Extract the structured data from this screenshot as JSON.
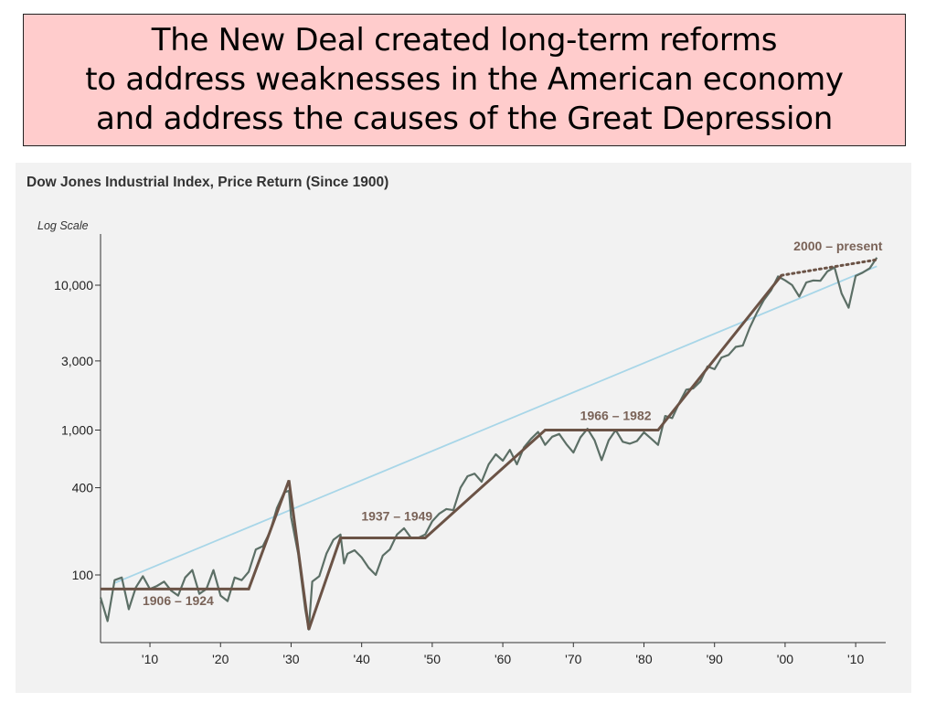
{
  "slide": {
    "title_lines": [
      "The New Deal created long-term reforms",
      "to address weaknesses in the American economy",
      "and address the causes of the Great Depression"
    ]
  },
  "chart_data": {
    "type": "line",
    "title": "Dow Jones Industrial Index, Price Return (Since 1900)",
    "scale_note": "Log Scale",
    "y_scale": "log",
    "xlim": [
      1903,
      2014
    ],
    "ylim": [
      40,
      25000
    ],
    "x_ticks": [
      {
        "value": 1910,
        "label": "'10"
      },
      {
        "value": 1920,
        "label": "'20"
      },
      {
        "value": 1930,
        "label": "'30"
      },
      {
        "value": 1940,
        "label": "'40"
      },
      {
        "value": 1950,
        "label": "'50"
      },
      {
        "value": 1960,
        "label": "'60"
      },
      {
        "value": 1970,
        "label": "'70"
      },
      {
        "value": 1980,
        "label": "'80"
      },
      {
        "value": 1990,
        "label": "'90"
      },
      {
        "value": 2000,
        "label": "'00"
      },
      {
        "value": 2010,
        "label": "'10"
      }
    ],
    "y_ticks": [
      {
        "value": 100,
        "label": "100"
      },
      {
        "value": 400,
        "label": "400"
      },
      {
        "value": 1000,
        "label": "1,000"
      },
      {
        "value": 3000,
        "label": "3,000"
      },
      {
        "value": 10000,
        "label": "10,000"
      }
    ],
    "series": [
      {
        "role": "index",
        "color": "#5c6f66",
        "points": [
          [
            1903,
            70
          ],
          [
            1904,
            48
          ],
          [
            1905,
            92
          ],
          [
            1906,
            96
          ],
          [
            1907,
            58
          ],
          [
            1908,
            82
          ],
          [
            1909,
            98
          ],
          [
            1910,
            80
          ],
          [
            1911,
            84
          ],
          [
            1912,
            90
          ],
          [
            1913,
            78
          ],
          [
            1914,
            72
          ],
          [
            1915,
            96
          ],
          [
            1916,
            108
          ],
          [
            1917,
            74
          ],
          [
            1918,
            80
          ],
          [
            1919,
            108
          ],
          [
            1920,
            72
          ],
          [
            1921,
            66
          ],
          [
            1922,
            96
          ],
          [
            1923,
            92
          ],
          [
            1924,
            105
          ],
          [
            1925,
            150
          ],
          [
            1926,
            158
          ],
          [
            1927,
            198
          ],
          [
            1928,
            290
          ],
          [
            1929,
            370
          ],
          [
            1929.7,
            381
          ],
          [
            1930,
            250
          ],
          [
            1931,
            140
          ],
          [
            1932,
            58
          ],
          [
            1932.5,
            42
          ],
          [
            1933,
            90
          ],
          [
            1934,
            98
          ],
          [
            1935,
            140
          ],
          [
            1936,
            175
          ],
          [
            1937,
            190
          ],
          [
            1937.5,
            120
          ],
          [
            1938,
            140
          ],
          [
            1939,
            148
          ],
          [
            1940,
            132
          ],
          [
            1941,
            112
          ],
          [
            1942,
            100
          ],
          [
            1943,
            136
          ],
          [
            1944,
            150
          ],
          [
            1945,
            190
          ],
          [
            1946,
            210
          ],
          [
            1947,
            180
          ],
          [
            1948,
            180
          ],
          [
            1949,
            190
          ],
          [
            1950,
            235
          ],
          [
            1951,
            265
          ],
          [
            1952,
            285
          ],
          [
            1953,
            280
          ],
          [
            1954,
            400
          ],
          [
            1955,
            480
          ],
          [
            1956,
            500
          ],
          [
            1957,
            440
          ],
          [
            1958,
            580
          ],
          [
            1959,
            680
          ],
          [
            1960,
            615
          ],
          [
            1961,
            730
          ],
          [
            1962,
            580
          ],
          [
            1963,
            760
          ],
          [
            1964,
            870
          ],
          [
            1965,
            970
          ],
          [
            1966,
            790
          ],
          [
            1967,
            900
          ],
          [
            1968,
            940
          ],
          [
            1969,
            800
          ],
          [
            1970,
            700
          ],
          [
            1971,
            890
          ],
          [
            1972,
            1020
          ],
          [
            1973,
            850
          ],
          [
            1974,
            620
          ],
          [
            1975,
            850
          ],
          [
            1976,
            1000
          ],
          [
            1977,
            830
          ],
          [
            1978,
            805
          ],
          [
            1979,
            840
          ],
          [
            1980,
            965
          ],
          [
            1981,
            875
          ],
          [
            1982,
            790
          ],
          [
            1983,
            1250
          ],
          [
            1984,
            1210
          ],
          [
            1985,
            1540
          ],
          [
            1986,
            1900
          ],
          [
            1987,
            1940
          ],
          [
            1988,
            2170
          ],
          [
            1989,
            2750
          ],
          [
            1990,
            2630
          ],
          [
            1991,
            3170
          ],
          [
            1992,
            3300
          ],
          [
            1993,
            3750
          ],
          [
            1994,
            3830
          ],
          [
            1995,
            5100
          ],
          [
            1996,
            6450
          ],
          [
            1997,
            7900
          ],
          [
            1998,
            9200
          ],
          [
            1999,
            11500
          ],
          [
            2000,
            10800
          ],
          [
            2001,
            10020
          ],
          [
            2002,
            8340
          ],
          [
            2003,
            10450
          ],
          [
            2004,
            10780
          ],
          [
            2005,
            10720
          ],
          [
            2006,
            12460
          ],
          [
            2007,
            13260
          ],
          [
            2008,
            8780
          ],
          [
            2009,
            7000
          ],
          [
            2010,
            11580
          ],
          [
            2011,
            12220
          ],
          [
            2012,
            13100
          ],
          [
            2013,
            15500
          ]
        ]
      },
      {
        "role": "secular-trend",
        "color": "#6b5346",
        "points": [
          [
            1903,
            80
          ],
          [
            1924,
            80
          ],
          [
            1929.7,
            450
          ],
          [
            1932.5,
            42
          ],
          [
            1937,
            180
          ],
          [
            1949,
            180
          ],
          [
            1966,
            1000
          ],
          [
            1982,
            1000
          ],
          [
            1999.5,
            11700
          ],
          [
            2013,
            15000
          ]
        ]
      },
      {
        "role": "long-run-trend",
        "color": "#a8d6e8",
        "points": [
          [
            1905,
            88
          ],
          [
            2013,
            13500
          ]
        ]
      }
    ],
    "annotations": [
      {
        "text": "1906 – 1924",
        "x": 1914,
        "y": 62
      },
      {
        "text": "1937 – 1949",
        "x": 1945,
        "y": 238
      },
      {
        "text": "1966 – 1982",
        "x": 1976,
        "y": 1170
      },
      {
        "text": "2000 – present",
        "x": 2007.5,
        "y": 17400
      }
    ]
  }
}
